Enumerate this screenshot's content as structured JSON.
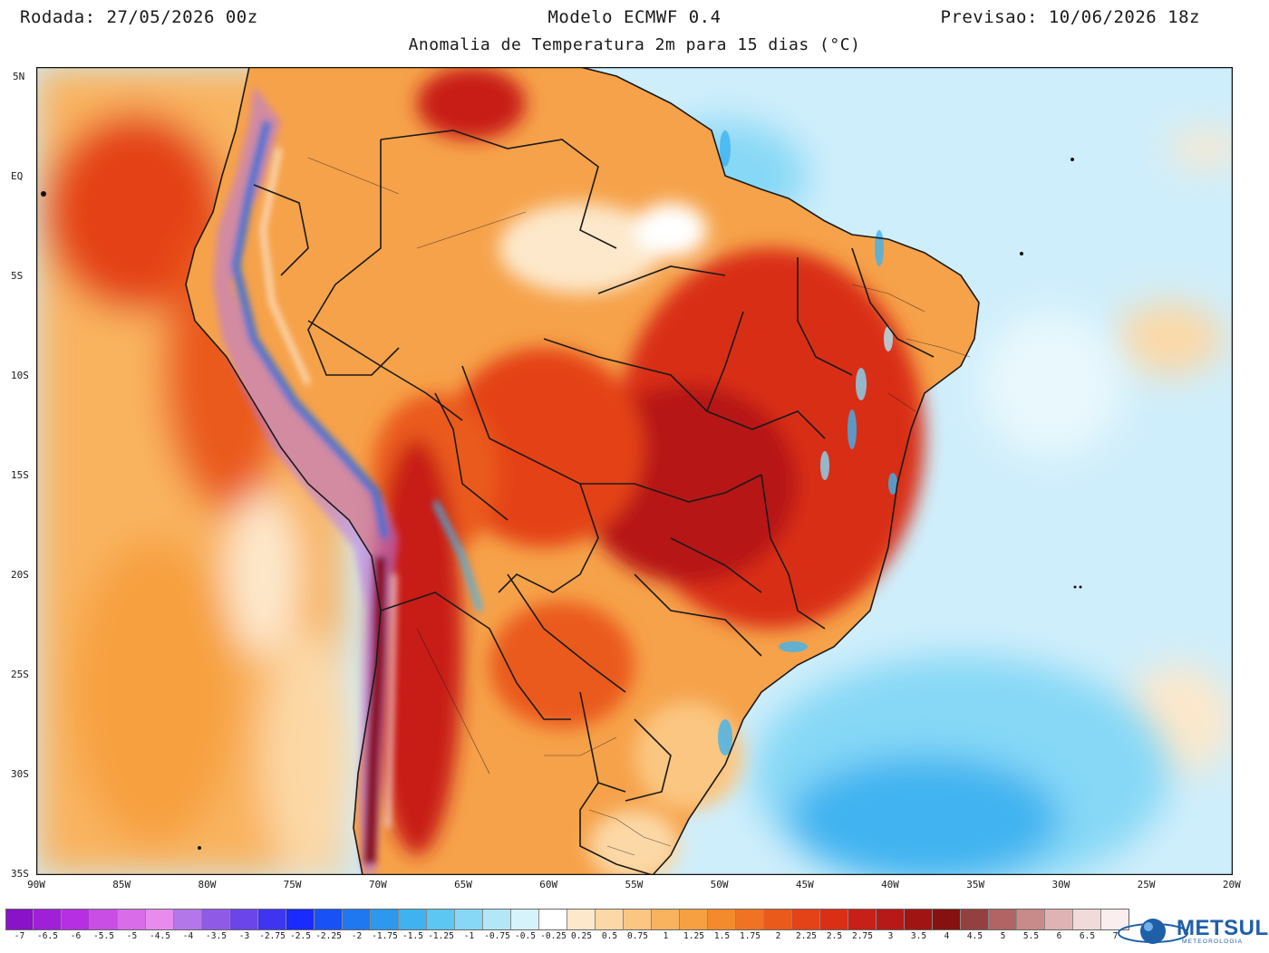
{
  "header": {
    "run": "Rodada: 27/05/2026 00z",
    "model": "Modelo ECMWF 0.4",
    "valid": "Previsao: 10/06/2026 18z",
    "subtitle": "Anomalia de Temperatura 2m para 15 dias (°C)"
  },
  "map": {
    "lat_labels": [
      "5N",
      "EQ",
      "5S",
      "10S",
      "15S",
      "20S",
      "25S",
      "30S",
      "35S"
    ],
    "lon_labels": [
      "90W",
      "85W",
      "80W",
      "75W",
      "70W",
      "65W",
      "60W",
      "55W",
      "50W",
      "45W",
      "40W",
      "35W",
      "30W",
      "25W",
      "20W"
    ],
    "colors": {
      "ocean_cool": "#cfeefb",
      "ocean_cold": "#58c2f0",
      "ocean_warm": "#fbd6a4",
      "land_warm": "#f6a24a",
      "land_hot": "#e3541e",
      "land_very_hot": "#b8241c",
      "andes_cold": "#3a6fd8",
      "borders": "#1a1a1a"
    }
  },
  "colorbar": {
    "colors": [
      "#8a12c9",
      "#a020d8",
      "#b62fe0",
      "#c84ee6",
      "#d96ce8",
      "#e78ced",
      "#b477ea",
      "#8f5ae6",
      "#6b45ea",
      "#3f34f0",
      "#1a2bff",
      "#1652f5",
      "#1f78f0",
      "#2c98ee",
      "#3fb3f0",
      "#5cc7f3",
      "#86d8f6",
      "#b2e7f8",
      "#d6f2fb",
      "#ffffff",
      "#fde8cb",
      "#fcd8a6",
      "#fbc681",
      "#f9b35f",
      "#f7a041",
      "#f38b2c",
      "#ef7322",
      "#ea5a1a",
      "#e44217",
      "#d92f15",
      "#c81f16",
      "#b71818",
      "#a01414",
      "#871111",
      "#944040",
      "#b06464",
      "#c98a8a",
      "#dfb3b3",
      "#f2dada",
      "#fbeeee"
    ],
    "labels": [
      "-7",
      "-6.5",
      "-6",
      "-5.5",
      "-5",
      "-4.5",
      "-4",
      "-3.5",
      "-3",
      "-2.75",
      "-2.5",
      "-2.25",
      "-2",
      "-1.75",
      "-1.5",
      "-1.25",
      "-1",
      "-0.75",
      "-0.5",
      "-0.25",
      "0.25",
      "0.5",
      "0.75",
      "1",
      "1.25",
      "1.5",
      "1.75",
      "2",
      "2.25",
      "2.5",
      "2.75",
      "3",
      "3.5",
      "4",
      "4.5",
      "5",
      "5.5",
      "6",
      "6.5",
      "7"
    ]
  },
  "logo": {
    "name": "METSUL",
    "tagline": "METEOROLOGIA"
  }
}
